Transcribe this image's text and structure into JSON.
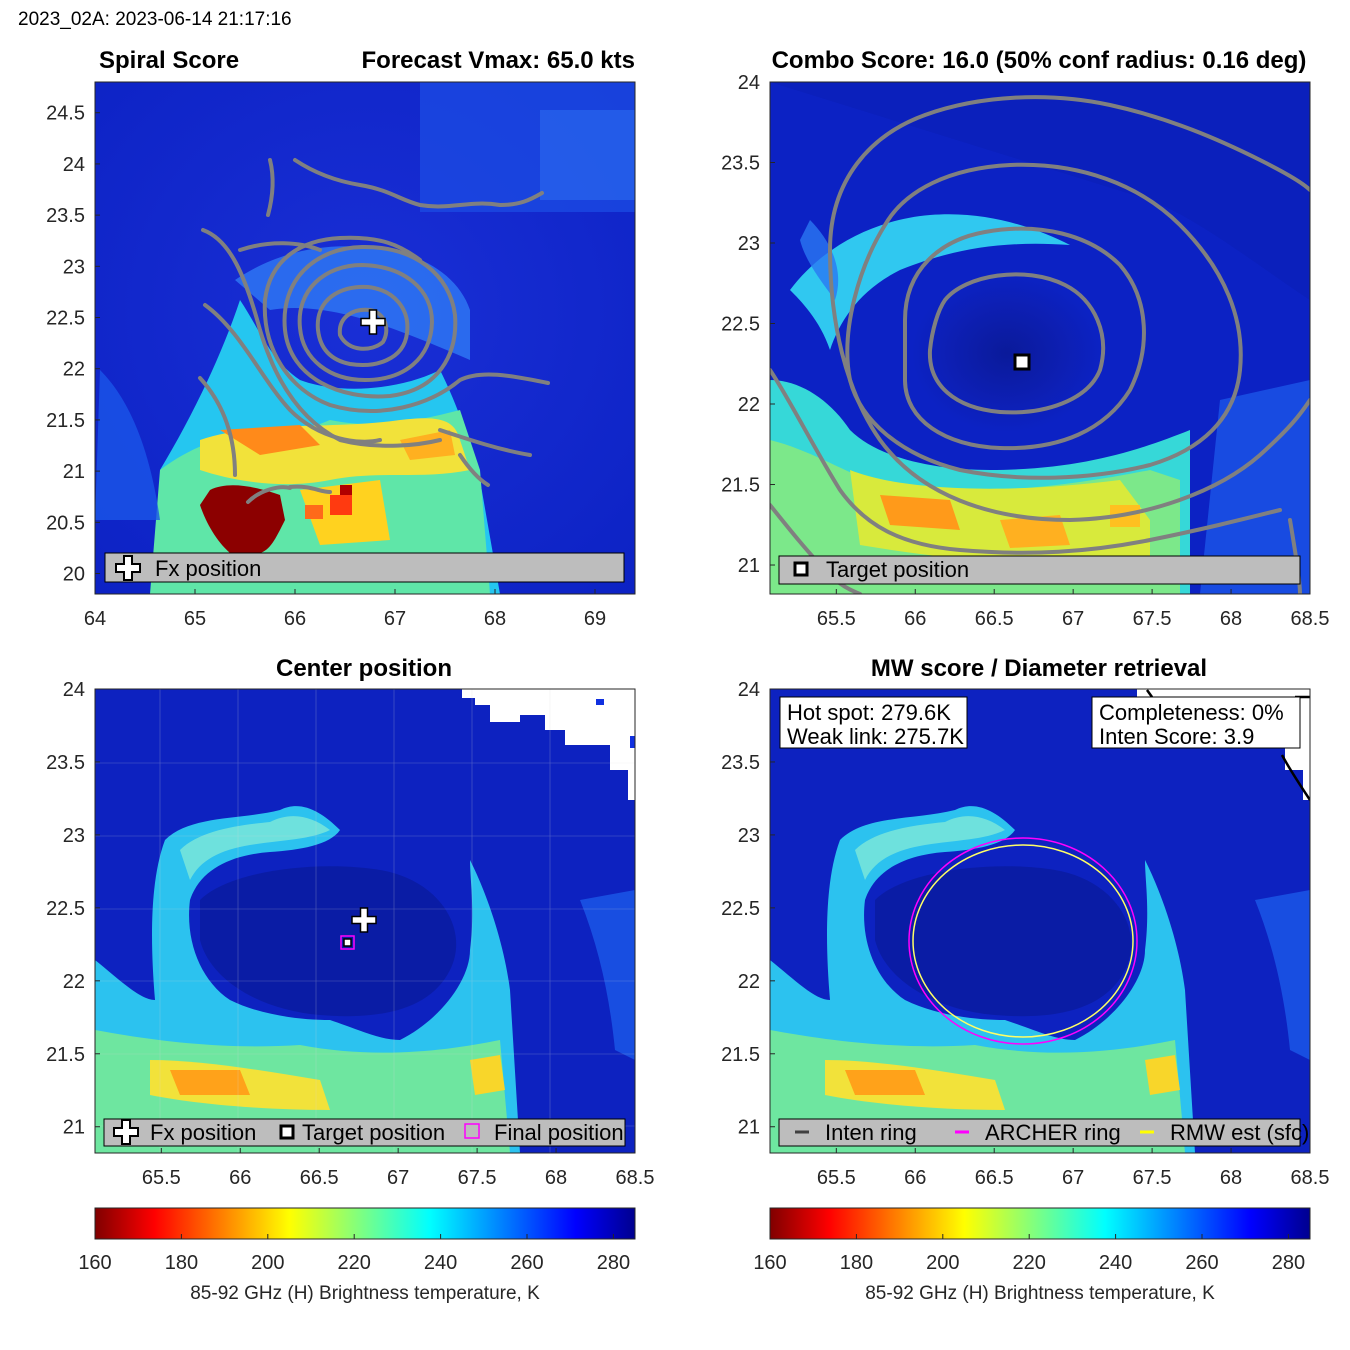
{
  "header": {
    "timestamp": "2023_02A: 2023-06-14 21:17:16"
  },
  "colors": {
    "contour": "#808080",
    "inten_ring": "#404040",
    "archer_ring": "#ff00ff",
    "rmw_ring": "#ffff00",
    "legend_bg": "#bdbdbd"
  },
  "chart_data": [
    {
      "type": "heatmap",
      "panel": "spiral",
      "title_left": "Spiral Score",
      "title_right": "Forecast Vmax: 65.0 kts",
      "xlim": [
        64,
        69.4
      ],
      "ylim": [
        19.8,
        24.8
      ],
      "xticks": [
        64,
        65,
        66,
        67,
        68,
        69
      ],
      "yticks": [
        20,
        20.5,
        21,
        21.5,
        22,
        22.5,
        23,
        23.5,
        24,
        24.5
      ],
      "markers": [
        {
          "label": "Fx position",
          "symbol": "cross",
          "x": 66.8,
          "y": 22.42
        }
      ],
      "legend": [
        "Fx position"
      ]
    },
    {
      "type": "heatmap",
      "panel": "combo",
      "title": "Combo Score: 16.0  (50% conf radius: 0.16 deg)",
      "xlim": [
        65.08,
        68.5
      ],
      "ylim": [
        20.82,
        24.0
      ],
      "xticks": [
        65.5,
        66,
        66.5,
        67,
        67.5,
        68,
        68.5
      ],
      "yticks": [
        21,
        21.5,
        22,
        22.5,
        23,
        23.5,
        24
      ],
      "markers": [
        {
          "label": "Target position",
          "symbol": "square",
          "x": 66.7,
          "y": 22.27
        }
      ],
      "legend": [
        "Target position"
      ]
    },
    {
      "type": "heatmap",
      "panel": "center",
      "title": "Center position",
      "xlim": [
        65.08,
        68.5
      ],
      "ylim": [
        20.82,
        24.0
      ],
      "xticks": [
        65.5,
        66,
        66.5,
        67,
        67.5,
        68,
        68.5
      ],
      "yticks": [
        21,
        21.5,
        22,
        22.5,
        23,
        23.5,
        24
      ],
      "markers": [
        {
          "label": "Fx position",
          "symbol": "cross",
          "x": 66.8,
          "y": 22.42
        },
        {
          "label": "Target position",
          "symbol": "square",
          "x": 66.7,
          "y": 22.27
        },
        {
          "label": "Final position",
          "symbol": "square-magenta",
          "x": 66.7,
          "y": 22.27
        }
      ],
      "legend": [
        "Fx position",
        "Target position",
        "Final position"
      ]
    },
    {
      "type": "heatmap",
      "panel": "mw",
      "title": "MW score / Diameter retrieval",
      "xlim": [
        65.08,
        68.5
      ],
      "ylim": [
        20.82,
        24.0
      ],
      "xticks": [
        65.5,
        66,
        66.5,
        67,
        67.5,
        68,
        68.5
      ],
      "yticks": [
        21,
        21.5,
        22,
        22.5,
        23,
        23.5,
        24
      ],
      "annotations": {
        "hot_spot": "Hot spot: 279.6K",
        "weak_link": "Weak link: 275.7K",
        "completeness": "Completeness: 0%",
        "inten_score": "Inten Score: 3.9"
      },
      "rings": [
        {
          "label": "ARCHER ring",
          "cx": 66.7,
          "cy": 22.27,
          "rx_deg": 0.73,
          "ry_deg": 0.69
        },
        {
          "label": "RMW est (sfc)",
          "cx": 66.7,
          "cy": 22.28,
          "rx_deg": 0.7,
          "ry_deg": 0.66
        }
      ],
      "legend": [
        "Inten ring",
        "ARCHER ring",
        "RMW est (sfc)"
      ]
    }
  ],
  "colorbar": {
    "ticks": [
      160,
      180,
      200,
      220,
      240,
      260,
      280
    ],
    "range": [
      160,
      285
    ],
    "label": "85-92 GHz (H) Brightness temperature, K",
    "colormap": "jet-reversed"
  }
}
